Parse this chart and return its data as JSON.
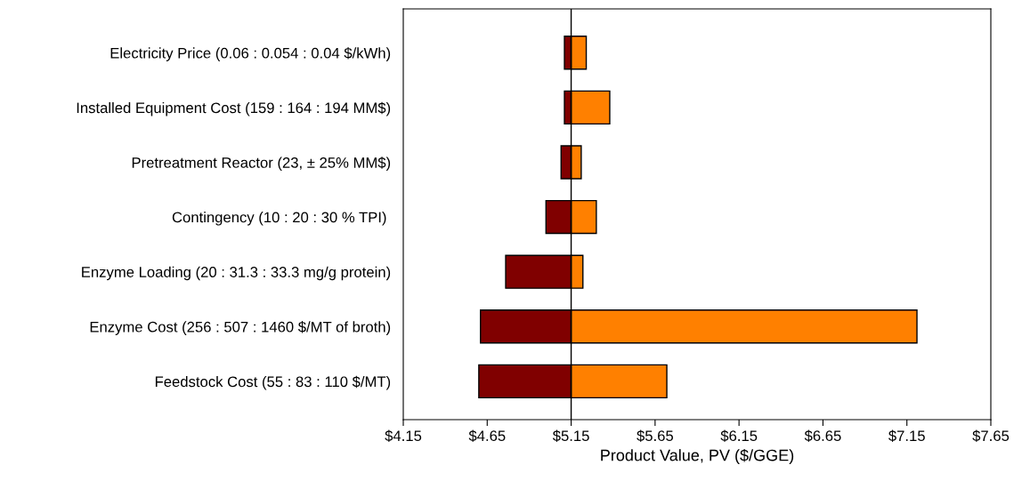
{
  "chart_data": {
    "type": "bar",
    "orientation": "horizontal",
    "xlabel": "Product Value, PV ($/GGE)",
    "categories": [
      "Electricity Price (0.06 : 0.054 : 0.04 $/kWh)",
      "Installed Equipment Cost (159 : 164 : 194 MM$)",
      "Pretreatment Reactor (23, ± 25% MM$)",
      "Contingency (10 : 20 : 30 % TPI) ",
      "Enzyme Loading (20 : 31.3 : 33.3 mg/g protein)",
      "Enzyme Cost (256 : 507 : 1460 $/MT of broth)",
      "Feedstock Cost (55 : 83 : 110 $/MT)"
    ],
    "series": [
      {
        "color": "#800000",
        "base": [
          5.11,
          5.11,
          5.09,
          5.0,
          4.76,
          4.61,
          4.6
        ],
        "values": [
          0.04,
          0.04,
          0.06,
          0.15,
          0.39,
          0.54,
          0.55
        ]
      },
      {
        "color": "#ff8000",
        "base": [
          5.15,
          5.15,
          5.15,
          5.15,
          5.15,
          5.15,
          5.15
        ],
        "values": [
          0.09,
          0.23,
          0.06,
          0.15,
          0.07,
          2.06,
          0.57
        ]
      }
    ],
    "xlim": [
      4.15,
      7.65
    ],
    "xticks": [
      {
        "value": 4.15,
        "label": "$4.15"
      },
      {
        "value": 4.65,
        "label": "$4.65"
      },
      {
        "value": 5.15,
        "label": "$5.15"
      },
      {
        "value": 5.65,
        "label": "$5.65"
      },
      {
        "value": 6.15,
        "label": "$6.15"
      },
      {
        "value": 6.65,
        "label": "$6.65"
      },
      {
        "value": 7.15,
        "label": "$7.15"
      },
      {
        "value": 7.65,
        "label": "$7.65"
      }
    ],
    "ref_lines": [
      {
        "axis": "x",
        "value": 5.15,
        "color": "#000000"
      }
    ],
    "grid": false,
    "legend": false
  }
}
